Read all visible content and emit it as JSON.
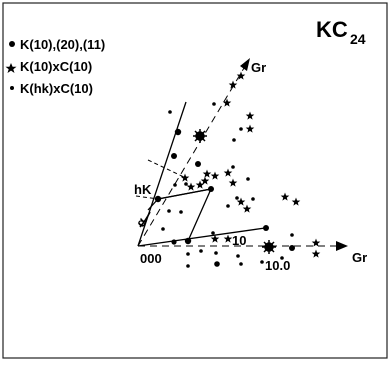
{
  "title": "KC",
  "title_sub": "24",
  "legend": [
    {
      "symbol": "dot",
      "label": "K(10),(20),(11)"
    },
    {
      "symbol": "star",
      "label": "K(10)xC(10)"
    },
    {
      "symbol": "small-dot",
      "label": "K(hk)xC(10)"
    }
  ],
  "axis_labels": {
    "gr_upper": "Gr",
    "gr_lower": "Gr"
  },
  "annotations": {
    "origin": "000",
    "axis_tick": "10.0",
    "hk": "hK",
    "index_10": "10",
    "angle": "α"
  }
}
